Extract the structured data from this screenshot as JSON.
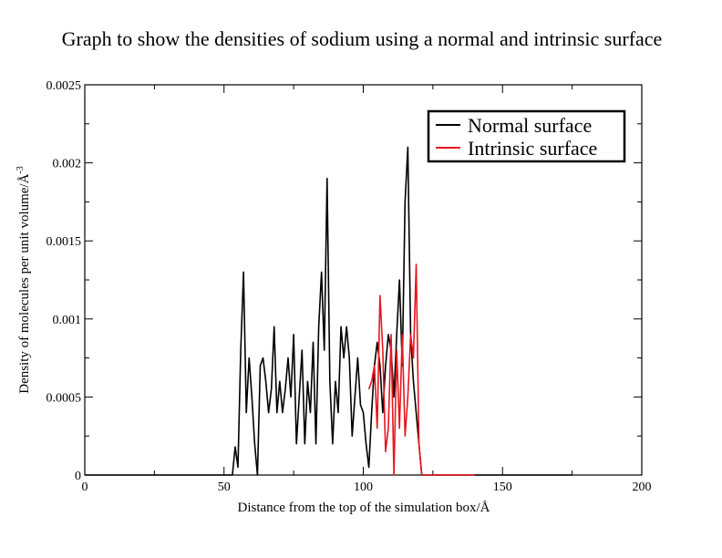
{
  "chart_data": {
    "type": "line",
    "title": "Graph to show the densities of sodium using a normal and intrinsic surface",
    "xlabel": "Distance from the top of the simulation box/Å",
    "ylabel_main": "Density of molecules per unit volume/Å",
    "ylabel_sup": "-3",
    "xlim": [
      0,
      200
    ],
    "ylim": [
      0,
      0.0025
    ],
    "xticks": [
      0,
      50,
      100,
      150,
      200
    ],
    "xtick_labels": [
      "0",
      "50",
      "100",
      "150",
      "200"
    ],
    "yticks": [
      0,
      0.0005,
      0.001,
      0.0015,
      0.002,
      0.0025
    ],
    "ytick_labels": [
      "0",
      "0.0005",
      "0.001",
      "0.0015",
      "0.002",
      "0.0025"
    ],
    "grid": false,
    "legend_position": "top-right",
    "series": [
      {
        "name": "Normal surface",
        "color": "#000000",
        "points": [
          [
            0,
            0
          ],
          [
            10,
            0
          ],
          [
            20,
            0
          ],
          [
            30,
            0
          ],
          [
            40,
            0
          ],
          [
            50,
            0
          ],
          [
            53,
            0
          ],
          [
            54,
            0.00018
          ],
          [
            55,
            5e-05
          ],
          [
            56,
            0.0008
          ],
          [
            57,
            0.0013
          ],
          [
            58,
            0.0004
          ],
          [
            59,
            0.00075
          ],
          [
            60,
            0.0005
          ],
          [
            61,
            0.0002
          ],
          [
            62,
            0.0
          ],
          [
            63,
            0.0007
          ],
          [
            64,
            0.00075
          ],
          [
            65,
            0.0006
          ],
          [
            66,
            0.0004
          ],
          [
            67,
            0.00055
          ],
          [
            68,
            0.00095
          ],
          [
            69,
            0.0004
          ],
          [
            70,
            0.0006
          ],
          [
            71,
            0.0004
          ],
          [
            72,
            0.00055
          ],
          [
            73,
            0.00075
          ],
          [
            74,
            0.0005
          ],
          [
            75,
            0.0009
          ],
          [
            76,
            0.0002
          ],
          [
            77,
            0.0005
          ],
          [
            78,
            0.0008
          ],
          [
            79,
            0.0002
          ],
          [
            80,
            0.0006
          ],
          [
            81,
            0.0004
          ],
          [
            82,
            0.00085
          ],
          [
            83,
            0.0002
          ],
          [
            84,
            0.00095
          ],
          [
            85,
            0.0013
          ],
          [
            86,
            0.0008
          ],
          [
            87,
            0.0019
          ],
          [
            88,
            0.0006
          ],
          [
            89,
            0.0002
          ],
          [
            90,
            0.0006
          ],
          [
            91,
            0.0004
          ],
          [
            92,
            0.00095
          ],
          [
            93,
            0.00075
          ],
          [
            94,
            0.00095
          ],
          [
            95,
            0.00075
          ],
          [
            96,
            0.00025
          ],
          [
            97,
            0.0005
          ],
          [
            98,
            0.00075
          ],
          [
            99,
            0.00045
          ],
          [
            100,
            0.0004
          ],
          [
            101,
            0.0002
          ],
          [
            102,
            5e-05
          ],
          [
            103,
            0.0004
          ],
          [
            104,
            0.0007
          ],
          [
            105,
            0.00085
          ],
          [
            106,
            0.0007
          ],
          [
            107,
            0.0004
          ],
          [
            108,
            0.0007
          ],
          [
            109,
            0.0009
          ],
          [
            110,
            0.0008
          ],
          [
            111,
            0.0005
          ],
          [
            112,
            0.0009
          ],
          [
            113,
            0.00125
          ],
          [
            114,
            0.0007
          ],
          [
            115,
            0.00175
          ],
          [
            116,
            0.0021
          ],
          [
            117,
            0.0009
          ],
          [
            118,
            0.0006
          ],
          [
            119,
            0.0004
          ],
          [
            120,
            0.0002
          ],
          [
            121,
            0
          ],
          [
            130,
            0
          ],
          [
            140,
            0
          ],
          [
            150,
            0
          ],
          [
            160,
            0
          ],
          [
            170,
            0
          ],
          [
            175,
            0
          ]
        ]
      },
      {
        "name": "Intrinsic surface",
        "color": "#e8161d",
        "points": [
          [
            102,
            0.00055
          ],
          [
            103,
            0.0006
          ],
          [
            104,
            0.0007
          ],
          [
            105,
            0.0003
          ],
          [
            106,
            0.00115
          ],
          [
            107,
            0.0008
          ],
          [
            108,
            0.00015
          ],
          [
            109,
            0.0003
          ],
          [
            110,
            0.0009
          ],
          [
            111,
            0.0
          ],
          [
            112,
            0.0008
          ],
          [
            113,
            0.0003
          ],
          [
            114,
            0.0009
          ],
          [
            115,
            0.00025
          ],
          [
            116,
            0.0005
          ],
          [
            117,
            0.0009
          ],
          [
            118,
            0.00075
          ],
          [
            119,
            0.00135
          ],
          [
            120,
            0.0002
          ],
          [
            121,
            0.0
          ],
          [
            125,
            0
          ],
          [
            130,
            0
          ],
          [
            135,
            0
          ],
          [
            140,
            0
          ]
        ]
      }
    ]
  }
}
